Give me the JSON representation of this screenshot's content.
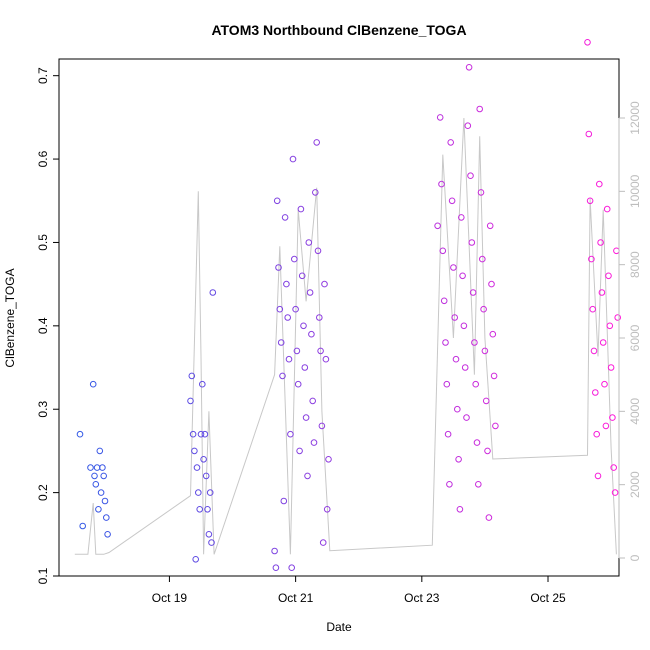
{
  "chart_data": {
    "type": "scatter",
    "title": "ATOM3 Northbound ClBenzene_TOGA",
    "xlabel": "Date",
    "ylabel": "ClBenzene_TOGA",
    "x_ticks": [
      "Oct 19",
      "Oct 21",
      "Oct 23",
      "Oct 25"
    ],
    "xlim": [
      "2017-10-17 06:00",
      "2017-10-26 03:00"
    ],
    "ylim": [
      0.1,
      0.72
    ],
    "y_ticks": [
      0.1,
      0.2,
      0.3,
      0.4,
      0.5,
      0.6,
      0.7
    ],
    "y2_ticks": [
      0,
      2000,
      4000,
      6000,
      8000,
      10000,
      12000
    ],
    "y2_color": "#bdbdbd",
    "colors": {
      "start": "#2b5ce6",
      "end": "#ff1ad9",
      "line": "#c8c8c8"
    },
    "grid": false,
    "series": [
      {
        "values": [
          [
            "2017-10-17 14:00",
            0.27
          ],
          [
            "2017-10-17 15:00",
            0.16
          ],
          [
            "2017-10-17 18:00",
            0.23
          ],
          [
            "2017-10-17 19:00",
            0.33
          ],
          [
            "2017-10-17 19:30",
            0.22
          ],
          [
            "2017-10-17 20:00",
            0.21
          ],
          [
            "2017-10-17 20:30",
            0.23
          ],
          [
            "2017-10-17 21:00",
            0.18
          ],
          [
            "2017-10-17 21:30",
            0.25
          ],
          [
            "2017-10-17 22:00",
            0.2
          ],
          [
            "2017-10-17 22:30",
            0.23
          ],
          [
            "2017-10-17 23:00",
            0.22
          ],
          [
            "2017-10-17 23:30",
            0.19
          ],
          [
            "2017-10-18 00:00",
            0.17
          ],
          [
            "2017-10-18 00:30",
            0.15
          ],
          [
            "2017-10-19 08:00",
            0.31
          ],
          [
            "2017-10-19 08:30",
            0.34
          ],
          [
            "2017-10-19 09:00",
            0.27
          ],
          [
            "2017-10-19 09:30",
            0.25
          ],
          [
            "2017-10-19 10:00",
            0.12
          ],
          [
            "2017-10-19 10:30",
            0.23
          ],
          [
            "2017-10-19 11:00",
            0.2
          ],
          [
            "2017-10-19 11:30",
            0.18
          ],
          [
            "2017-10-19 12:00",
            0.27
          ],
          [
            "2017-10-19 12:30",
            0.33
          ],
          [
            "2017-10-19 13:00",
            0.24
          ],
          [
            "2017-10-19 13:30",
            0.27
          ],
          [
            "2017-10-19 14:00",
            0.22
          ],
          [
            "2017-10-19 14:30",
            0.18
          ],
          [
            "2017-10-19 15:00",
            0.15
          ],
          [
            "2017-10-19 15:30",
            0.2
          ],
          [
            "2017-10-19 16:00",
            0.14
          ],
          [
            "2017-10-19 16:30",
            0.44
          ],
          [
            "2017-10-20 16:00",
            0.13
          ],
          [
            "2017-10-20 16:30",
            0.11
          ],
          [
            "2017-10-20 17:00",
            0.55
          ],
          [
            "2017-10-20 17:30",
            0.47
          ],
          [
            "2017-10-20 18:00",
            0.42
          ],
          [
            "2017-10-20 18:30",
            0.38
          ],
          [
            "2017-10-20 19:00",
            0.34
          ],
          [
            "2017-10-20 19:30",
            0.19
          ],
          [
            "2017-10-20 20:00",
            0.53
          ],
          [
            "2017-10-20 20:30",
            0.45
          ],
          [
            "2017-10-20 21:00",
            0.41
          ],
          [
            "2017-10-20 21:30",
            0.36
          ],
          [
            "2017-10-20 22:00",
            0.27
          ],
          [
            "2017-10-20 22:30",
            0.11
          ],
          [
            "2017-10-20 23:00",
            0.6
          ],
          [
            "2017-10-20 23:30",
            0.48
          ],
          [
            "2017-10-21 00:00",
            0.42
          ],
          [
            "2017-10-21 00:30",
            0.37
          ],
          [
            "2017-10-21 01:00",
            0.33
          ],
          [
            "2017-10-21 01:30",
            0.25
          ],
          [
            "2017-10-21 02:00",
            0.54
          ],
          [
            "2017-10-21 02:30",
            0.46
          ],
          [
            "2017-10-21 03:00",
            0.4
          ],
          [
            "2017-10-21 03:30",
            0.35
          ],
          [
            "2017-10-21 04:00",
            0.29
          ],
          [
            "2017-10-21 04:30",
            0.22
          ],
          [
            "2017-10-21 05:00",
            0.5
          ],
          [
            "2017-10-21 05:30",
            0.44
          ],
          [
            "2017-10-21 06:00",
            0.39
          ],
          [
            "2017-10-21 06:30",
            0.31
          ],
          [
            "2017-10-21 07:00",
            0.26
          ],
          [
            "2017-10-21 07:30",
            0.56
          ],
          [
            "2017-10-21 08:00",
            0.62
          ],
          [
            "2017-10-21 08:30",
            0.49
          ],
          [
            "2017-10-21 09:00",
            0.41
          ],
          [
            "2017-10-21 09:30",
            0.37
          ],
          [
            "2017-10-21 10:00",
            0.28
          ],
          [
            "2017-10-21 10:30",
            0.14
          ],
          [
            "2017-10-21 11:00",
            0.45
          ],
          [
            "2017-10-21 11:30",
            0.36
          ],
          [
            "2017-10-21 12:00",
            0.18
          ],
          [
            "2017-10-21 12:30",
            0.24
          ],
          [
            "2017-10-23 06:00",
            0.52
          ],
          [
            "2017-10-23 07:00",
            0.65
          ],
          [
            "2017-10-23 07:30",
            0.57
          ],
          [
            "2017-10-23 08:00",
            0.49
          ],
          [
            "2017-10-23 08:30",
            0.43
          ],
          [
            "2017-10-23 09:00",
            0.38
          ],
          [
            "2017-10-23 09:30",
            0.33
          ],
          [
            "2017-10-23 10:00",
            0.27
          ],
          [
            "2017-10-23 10:30",
            0.21
          ],
          [
            "2017-10-23 11:00",
            0.62
          ],
          [
            "2017-10-23 11:30",
            0.55
          ],
          [
            "2017-10-23 12:00",
            0.47
          ],
          [
            "2017-10-23 12:30",
            0.41
          ],
          [
            "2017-10-23 13:00",
            0.36
          ],
          [
            "2017-10-23 13:30",
            0.3
          ],
          [
            "2017-10-23 14:00",
            0.24
          ],
          [
            "2017-10-23 14:30",
            0.18
          ],
          [
            "2017-10-23 15:00",
            0.53
          ],
          [
            "2017-10-23 15:30",
            0.46
          ],
          [
            "2017-10-23 16:00",
            0.4
          ],
          [
            "2017-10-23 16:30",
            0.35
          ],
          [
            "2017-10-23 17:00",
            0.29
          ],
          [
            "2017-10-23 17:30",
            0.64
          ],
          [
            "2017-10-23 18:00",
            0.71
          ],
          [
            "2017-10-23 18:30",
            0.58
          ],
          [
            "2017-10-23 19:00",
            0.5
          ],
          [
            "2017-10-23 19:30",
            0.44
          ],
          [
            "2017-10-23 20:00",
            0.38
          ],
          [
            "2017-10-23 20:30",
            0.33
          ],
          [
            "2017-10-23 21:00",
            0.26
          ],
          [
            "2017-10-23 21:30",
            0.21
          ],
          [
            "2017-10-23 22:00",
            0.66
          ],
          [
            "2017-10-23 22:30",
            0.56
          ],
          [
            "2017-10-23 23:00",
            0.48
          ],
          [
            "2017-10-23 23:30",
            0.42
          ],
          [
            "2017-10-24 00:00",
            0.37
          ],
          [
            "2017-10-24 00:30",
            0.31
          ],
          [
            "2017-10-24 01:00",
            0.25
          ],
          [
            "2017-10-24 01:30",
            0.17
          ],
          [
            "2017-10-24 02:00",
            0.52
          ],
          [
            "2017-10-24 02:30",
            0.45
          ],
          [
            "2017-10-24 03:00",
            0.39
          ],
          [
            "2017-10-24 03:30",
            0.34
          ],
          [
            "2017-10-24 04:00",
            0.28
          ],
          [
            "2017-10-25 15:00",
            0.74
          ],
          [
            "2017-10-25 15:30",
            0.63
          ],
          [
            "2017-10-25 16:00",
            0.55
          ],
          [
            "2017-10-25 16:30",
            0.48
          ],
          [
            "2017-10-25 17:00",
            0.42
          ],
          [
            "2017-10-25 17:30",
            0.37
          ],
          [
            "2017-10-25 18:00",
            0.32
          ],
          [
            "2017-10-25 18:30",
            0.27
          ],
          [
            "2017-10-25 19:00",
            0.22
          ],
          [
            "2017-10-25 19:30",
            0.57
          ],
          [
            "2017-10-25 20:00",
            0.5
          ],
          [
            "2017-10-25 20:30",
            0.44
          ],
          [
            "2017-10-25 21:00",
            0.38
          ],
          [
            "2017-10-25 21:30",
            0.33
          ],
          [
            "2017-10-25 22:00",
            0.28
          ],
          [
            "2017-10-25 22:30",
            0.54
          ],
          [
            "2017-10-25 23:00",
            0.46
          ],
          [
            "2017-10-25 23:30",
            0.4
          ],
          [
            "2017-10-26 00:00",
            0.35
          ],
          [
            "2017-10-26 00:30",
            0.29
          ],
          [
            "2017-10-26 01:00",
            0.23
          ],
          [
            "2017-10-26 01:30",
            0.2
          ],
          [
            "2017-10-26 02:00",
            0.49
          ],
          [
            "2017-10-26 02:30",
            0.41
          ]
        ]
      },
      {
        "axis": "right",
        "values": [
          [
            "2017-10-17 12:00",
            100
          ],
          [
            "2017-10-17 17:00",
            100
          ],
          [
            "2017-10-17 19:00",
            1500
          ],
          [
            "2017-10-17 20:00",
            100
          ],
          [
            "2017-10-17 23:00",
            100
          ],
          [
            "2017-10-18 01:00",
            150
          ],
          [
            "2017-10-19 08:00",
            1700
          ],
          [
            "2017-10-19 11:00",
            10000
          ],
          [
            "2017-10-19 12:00",
            5500
          ],
          [
            "2017-10-19 13:00",
            100
          ],
          [
            "2017-10-19 15:00",
            4000
          ],
          [
            "2017-10-19 17:00",
            100
          ],
          [
            "2017-10-20 16:00",
            5000
          ],
          [
            "2017-10-20 18:00",
            8500
          ],
          [
            "2017-10-20 22:00",
            100
          ],
          [
            "2017-10-21 01:00",
            9500
          ],
          [
            "2017-10-21 04:00",
            7000
          ],
          [
            "2017-10-21 08:00",
            10100
          ],
          [
            "2017-10-21 10:00",
            4000
          ],
          [
            "2017-10-21 13:00",
            200
          ],
          [
            "2017-10-23 04:00",
            350
          ],
          [
            "2017-10-23 08:00",
            11000
          ],
          [
            "2017-10-23 12:00",
            6000
          ],
          [
            "2017-10-23 16:00",
            12000
          ],
          [
            "2017-10-23 20:00",
            5000
          ],
          [
            "2017-10-23 22:00",
            11500
          ],
          [
            "2017-10-24 00:00",
            6000
          ],
          [
            "2017-10-24 03:00",
            2700
          ],
          [
            "2017-10-25 15:00",
            2800
          ],
          [
            "2017-10-25 16:00",
            9800
          ],
          [
            "2017-10-25 19:00",
            5500
          ],
          [
            "2017-10-25 21:00",
            9500
          ],
          [
            "2017-10-26 00:00",
            3000
          ],
          [
            "2017-10-26 02:00",
            100
          ]
        ]
      }
    ]
  }
}
